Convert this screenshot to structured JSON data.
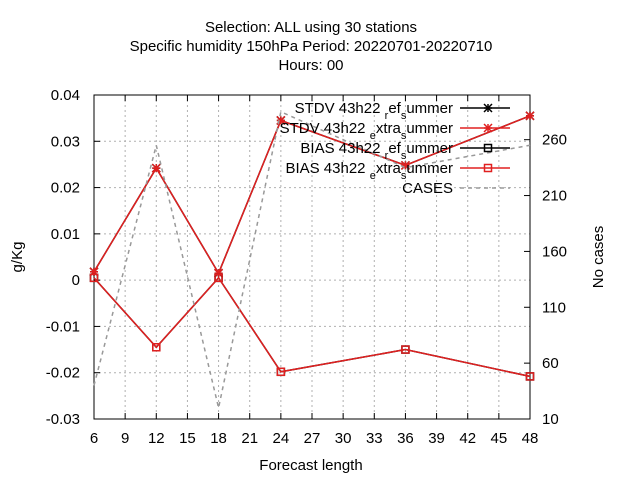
{
  "chart_data": {
    "type": "line",
    "title_lines": [
      "Selection: ALL using    30 stations",
      "Specific humidity 150hPa   Period: 20220701-20220710",
      "Hours:  00"
    ],
    "xlabel": "Forecast length",
    "ylabel": "g/Kg",
    "y2label": "No cases",
    "xlim": [
      6,
      48
    ],
    "ylim": [
      -0.03,
      0.04
    ],
    "y2lim": [
      10,
      300
    ],
    "x_ticks": [
      6,
      9,
      12,
      15,
      18,
      21,
      24,
      27,
      30,
      33,
      36,
      39,
      42,
      45,
      48
    ],
    "y_ticks": [
      -0.03,
      -0.02,
      -0.01,
      0,
      0.01,
      0.02,
      0.03,
      0.04
    ],
    "y_tick_labels": [
      "-0.03",
      "-0.02",
      "-0.01",
      "0",
      "0.01",
      "0.02",
      "0.03",
      "0.04"
    ],
    "y2_ticks": [
      10,
      60,
      110,
      160,
      210,
      260
    ],
    "grid": true,
    "legend_position": "top-right",
    "series": [
      {
        "name": "STDV 43h22 ref summer",
        "legend_parts": [
          "STDV 43h22",
          "r",
          "ef",
          "s",
          "ummer"
        ],
        "color": "#000000",
        "marker": "star",
        "axis": "y",
        "x": [
          6,
          12,
          18,
          24,
          36,
          48
        ],
        "values": [
          0.0018,
          0.0242,
          0.0015,
          0.0345,
          0.0248,
          0.0355
        ]
      },
      {
        "name": "STDV 43h22 extra summer",
        "legend_parts": [
          "STDV 43h22",
          "e",
          "xtra",
          "s",
          "ummer"
        ],
        "color": "#e02020",
        "marker": "star",
        "axis": "y",
        "x": [
          6,
          12,
          18,
          24,
          36,
          48
        ],
        "values": [
          0.0018,
          0.0242,
          0.0015,
          0.0345,
          0.0248,
          0.0355
        ]
      },
      {
        "name": "BIAS 43h22 ref summer",
        "legend_parts": [
          "BIAS 43h22",
          "r",
          "ef",
          "s",
          "ummer"
        ],
        "color": "#000000",
        "marker": "square",
        "axis": "y",
        "x": [
          6,
          12,
          18,
          24,
          36,
          48
        ],
        "values": [
          0.0005,
          -0.0145,
          0.0005,
          -0.0198,
          -0.015,
          -0.0208
        ]
      },
      {
        "name": "BIAS 43h22 extra summer",
        "legend_parts": [
          "BIAS 43h22",
          "e",
          "xtra",
          "s",
          "ummer"
        ],
        "color": "#e02020",
        "marker": "square",
        "axis": "y",
        "x": [
          6,
          12,
          18,
          24,
          36,
          48
        ],
        "values": [
          0.0005,
          -0.0145,
          0.0005,
          -0.0198,
          -0.015,
          -0.0208
        ]
      },
      {
        "name": "CASES",
        "legend_parts": [
          "CASES"
        ],
        "color": "#999999",
        "marker": "none",
        "dashed": true,
        "axis": "y2",
        "x": [
          6,
          12,
          18,
          24,
          36,
          48
        ],
        "values": [
          40,
          255,
          20,
          285,
          235,
          255
        ]
      }
    ]
  }
}
